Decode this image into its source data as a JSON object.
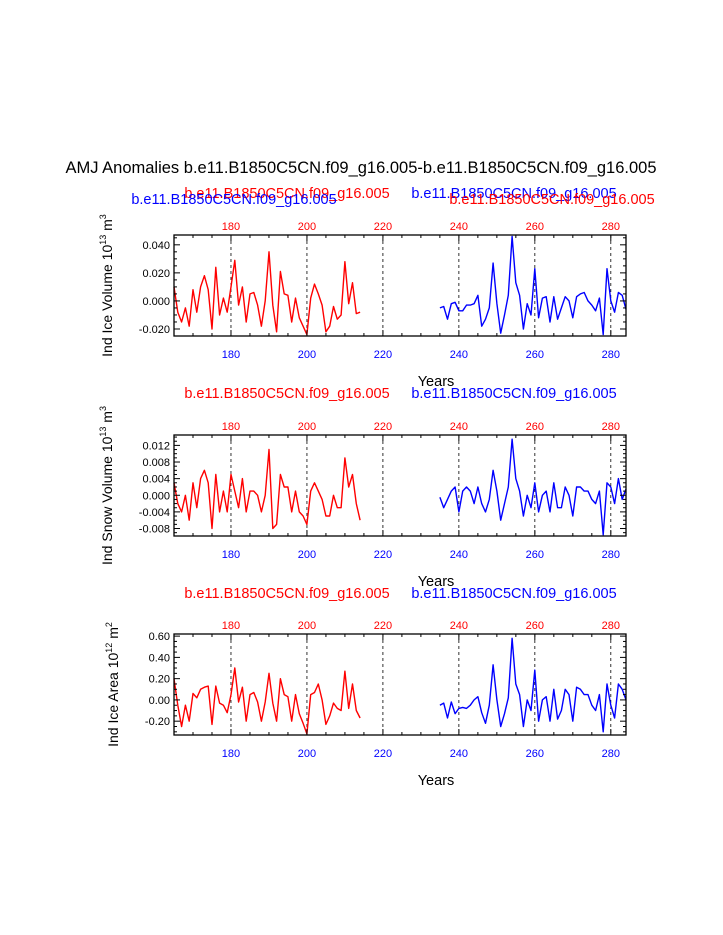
{
  "title": "AMJ Anomalies b.e11.B1850C5CN.f09_g16.005-b.e11.B1850C5CN.f09_g16.005",
  "colors": {
    "case1": "#ff0000",
    "case2": "#0000ff",
    "axis": "#000000",
    "refline": "#000000"
  },
  "chart_data": [
    {
      "type": "line",
      "xlabel": "Years",
      "ylabel": "Ind Ice Volume 10",
      "ylabel_exp": "13",
      "ylabel_unit": " m",
      "ylabel_unit_exp": "3",
      "xlim": [
        165,
        284
      ],
      "ylim": [
        -0.025,
        0.047
      ],
      "yticks": [
        -0.02,
        0.0,
        0.02,
        0.04
      ],
      "ytick_labels": [
        "-0.020",
        "0.000",
        "0.020",
        "0.040"
      ],
      "xticks": [
        180,
        200,
        220,
        240,
        260,
        280
      ],
      "xtick_labels": [
        "180",
        "200",
        "220",
        "240",
        "260",
        "280"
      ],
      "top_labels": [
        {
          "text": "b.e11.B1850C5CN.f09_g16.005",
          "color": "#ff0000"
        },
        {
          "text": "b.e11.B1850C5CN.f09_g16.005",
          "color": "#0000ff"
        },
        {
          "text": "b.e11.B1850C5CN.f09_g16.005",
          "color": "#0000ff"
        },
        {
          "text": "b.e11.B1850C5CN.f09_g16.005",
          "color": "#ff0000"
        }
      ],
      "reference_lines_x": [
        180,
        200,
        220,
        240,
        260,
        280
      ],
      "series": [
        {
          "color": "#ff0000",
          "x": [
            165,
            166,
            167,
            168,
            169,
            170,
            171,
            172,
            173,
            174,
            175,
            176,
            177,
            178,
            179,
            180,
            181,
            182,
            183,
            184,
            185,
            186,
            187,
            188,
            189,
            190,
            191,
            192,
            193,
            194,
            195,
            196,
            197,
            198,
            199,
            200,
            201,
            202,
            203,
            204,
            205,
            206,
            207,
            208,
            209,
            210,
            211,
            212,
            213,
            214
          ],
          "values": [
            0.01,
            -0.008,
            -0.015,
            -0.005,
            -0.018,
            0.008,
            -0.008,
            0.01,
            0.018,
            0.008,
            -0.02,
            0.024,
            -0.01,
            0.002,
            -0.008,
            0.01,
            0.029,
            -0.003,
            0.01,
            -0.015,
            0.005,
            0.006,
            -0.003,
            -0.018,
            0.0,
            0.035,
            -0.003,
            -0.022,
            0.021,
            0.005,
            0.004,
            -0.015,
            0.002,
            -0.012,
            -0.018,
            -0.024,
            0.002,
            0.012,
            0.005,
            -0.003,
            -0.022,
            -0.018,
            -0.004,
            -0.013,
            -0.01,
            0.028,
            -0.002,
            0.013,
            -0.009,
            -0.008
          ]
        },
        {
          "color": "#0000ff",
          "x": [
            235,
            236,
            237,
            238,
            239,
            240,
            241,
            242,
            243,
            244,
            245,
            246,
            247,
            248,
            249,
            250,
            251,
            252,
            253,
            254,
            255,
            256,
            257,
            258,
            259,
            260,
            261,
            262,
            263,
            264,
            265,
            266,
            267,
            268,
            269,
            270,
            271,
            272,
            273,
            274,
            275,
            276,
            277,
            278,
            279,
            280,
            281,
            282,
            283,
            284
          ],
          "values": [
            -0.005,
            -0.004,
            -0.013,
            -0.002,
            -0.001,
            -0.007,
            -0.007,
            -0.003,
            -0.003,
            -0.002,
            0.004,
            -0.018,
            -0.013,
            -0.005,
            0.027,
            -0.002,
            -0.023,
            -0.01,
            0.004,
            0.046,
            0.013,
            0.004,
            -0.02,
            -0.002,
            -0.01,
            0.023,
            -0.012,
            0.002,
            0.003,
            -0.015,
            0.003,
            -0.013,
            -0.005,
            0.003,
            0.0,
            -0.012,
            0.003,
            0.005,
            0.006,
            0.0,
            -0.003,
            -0.007,
            0.002,
            -0.024,
            0.023,
            0.0,
            -0.008,
            0.006,
            0.004,
            -0.006
          ]
        }
      ]
    },
    {
      "type": "line",
      "xlabel": "Years",
      "ylabel": "Ind Snow Volume 10",
      "ylabel_exp": "13",
      "ylabel_unit": " m",
      "ylabel_unit_exp": "3",
      "xlim": [
        165,
        284
      ],
      "ylim": [
        -0.0098,
        0.0145
      ],
      "yticks": [
        -0.008,
        -0.004,
        0.0,
        0.004,
        0.008,
        0.012
      ],
      "ytick_labels": [
        "-0.008",
        "-0.004",
        "0.000",
        "0.004",
        "0.008",
        "0.012"
      ],
      "xticks": [
        180,
        200,
        220,
        240,
        260,
        280
      ],
      "xtick_labels": [
        "180",
        "200",
        "220",
        "240",
        "260",
        "280"
      ],
      "top_labels": [
        {
          "text": "b.e11.B1850C5CN.f09_g16.005",
          "color": "#ff0000"
        },
        {
          "text": "b.e11.B1850C5CN.f09_g16.005",
          "color": "#0000ff"
        }
      ],
      "reference_lines_x": [
        180,
        200,
        220,
        240,
        260,
        280
      ],
      "series": [
        {
          "color": "#ff0000",
          "x": [
            165,
            166,
            167,
            168,
            169,
            170,
            171,
            172,
            173,
            174,
            175,
            176,
            177,
            178,
            179,
            180,
            181,
            182,
            183,
            184,
            185,
            186,
            187,
            188,
            189,
            190,
            191,
            192,
            193,
            194,
            195,
            196,
            197,
            198,
            199,
            200,
            201,
            202,
            203,
            204,
            205,
            206,
            207,
            208,
            209,
            210,
            211,
            212,
            213,
            214
          ],
          "values": [
            0.003,
            -0.002,
            -0.004,
            0.0,
            -0.006,
            0.003,
            -0.003,
            0.004,
            0.006,
            0.003,
            -0.008,
            0.005,
            -0.004,
            0.001,
            -0.004,
            0.005,
            0.001,
            -0.003,
            0.004,
            -0.004,
            0.001,
            0.001,
            0.0,
            -0.004,
            0.0,
            0.011,
            -0.008,
            -0.007,
            0.005,
            0.002,
            0.002,
            -0.004,
            0.001,
            -0.004,
            -0.005,
            -0.007,
            0.001,
            0.003,
            0.001,
            -0.001,
            -0.005,
            -0.005,
            0.0,
            -0.003,
            -0.003,
            0.009,
            0.002,
            0.005,
            -0.002,
            -0.006
          ]
        },
        {
          "color": "#0000ff",
          "x": [
            235,
            236,
            237,
            238,
            239,
            240,
            241,
            242,
            243,
            244,
            245,
            246,
            247,
            248,
            249,
            250,
            251,
            252,
            253,
            254,
            255,
            256,
            257,
            258,
            259,
            260,
            261,
            262,
            263,
            264,
            265,
            266,
            267,
            268,
            269,
            270,
            271,
            272,
            273,
            274,
            275,
            276,
            277,
            278,
            279,
            280,
            281,
            282,
            283,
            284
          ],
          "values": [
            -0.0005,
            -0.003,
            -0.001,
            0.001,
            0.002,
            -0.004,
            0.001,
            0.002,
            0.001,
            -0.002,
            0.002,
            -0.002,
            -0.004,
            -0.001,
            0.006,
            0.001,
            -0.006,
            -0.002,
            0.002,
            0.0135,
            0.004,
            0.001,
            -0.005,
            0.0,
            -0.003,
            0.003,
            -0.004,
            0.0,
            0.001,
            -0.004,
            0.003,
            -0.003,
            -0.003,
            0.002,
            0.0,
            -0.005,
            0.002,
            0.002,
            0.001,
            0.001,
            -0.001,
            -0.002,
            0.001,
            -0.0095,
            0.003,
            0.002,
            -0.002,
            0.004,
            -0.001,
            0.0015
          ]
        }
      ]
    },
    {
      "type": "line",
      "xlabel": "Years",
      "ylabel": "Ind Ice Area 10",
      "ylabel_exp": "12",
      "ylabel_unit": " m",
      "ylabel_unit_exp": "2",
      "xlim": [
        165,
        284
      ],
      "ylim": [
        -0.33,
        0.62
      ],
      "yticks": [
        -0.2,
        0.0,
        0.2,
        0.4,
        0.6
      ],
      "ytick_labels": [
        "-0.20",
        "0.00",
        "0.20",
        "0.40",
        "0.60"
      ],
      "xticks": [
        180,
        200,
        220,
        240,
        260,
        280
      ],
      "xtick_labels": [
        "180",
        "200",
        "220",
        "240",
        "260",
        "280"
      ],
      "top_labels": [
        {
          "text": "b.e11.B1850C5CN.f09_g16.005",
          "color": "#ff0000"
        },
        {
          "text": "b.e11.B1850C5CN.f09_g16.005",
          "color": "#0000ff"
        }
      ],
      "reference_lines_x": [
        180,
        200,
        220,
        240,
        260,
        280
      ],
      "series": [
        {
          "color": "#ff0000",
          "x": [
            165,
            166,
            167,
            168,
            169,
            170,
            171,
            172,
            173,
            174,
            175,
            176,
            177,
            178,
            179,
            180,
            181,
            182,
            183,
            184,
            185,
            186,
            187,
            188,
            189,
            190,
            191,
            192,
            193,
            194,
            195,
            196,
            197,
            198,
            199,
            200,
            201,
            202,
            203,
            204,
            205,
            206,
            207,
            208,
            209,
            210,
            211,
            212,
            213,
            214
          ],
          "values": [
            0.2,
            -0.05,
            -0.25,
            -0.05,
            -0.2,
            0.06,
            0.02,
            0.1,
            0.12,
            0.13,
            -0.23,
            0.13,
            -0.03,
            -0.05,
            -0.12,
            0.05,
            0.3,
            -0.02,
            0.12,
            -0.2,
            0.05,
            0.07,
            -0.02,
            -0.2,
            -0.02,
            0.25,
            -0.03,
            -0.2,
            0.2,
            0.05,
            0.03,
            -0.2,
            0.05,
            -0.13,
            -0.22,
            -0.32,
            0.05,
            0.07,
            0.15,
            0.0,
            -0.23,
            -0.15,
            -0.03,
            -0.08,
            -0.1,
            0.27,
            -0.08,
            0.15,
            -0.1,
            -0.17
          ]
        },
        {
          "color": "#0000ff",
          "x": [
            235,
            236,
            237,
            238,
            239,
            240,
            241,
            242,
            243,
            244,
            245,
            246,
            247,
            248,
            249,
            250,
            251,
            252,
            253,
            254,
            255,
            256,
            257,
            258,
            259,
            260,
            261,
            262,
            263,
            264,
            265,
            266,
            267,
            268,
            269,
            270,
            271,
            272,
            273,
            274,
            275,
            276,
            277,
            278,
            279,
            280,
            281,
            282,
            283,
            284
          ],
          "values": [
            -0.05,
            -0.03,
            -0.17,
            -0.02,
            -0.13,
            -0.08,
            -0.07,
            -0.08,
            -0.05,
            0.0,
            0.03,
            -0.12,
            -0.22,
            -0.05,
            0.33,
            0.0,
            -0.25,
            -0.13,
            0.02,
            0.58,
            0.15,
            0.05,
            -0.25,
            0.0,
            -0.1,
            0.28,
            -0.2,
            0.0,
            0.03,
            -0.2,
            0.1,
            -0.18,
            -0.1,
            0.1,
            0.05,
            -0.2,
            0.12,
            0.1,
            0.05,
            0.05,
            -0.05,
            -0.1,
            0.05,
            -0.3,
            0.15,
            -0.05,
            -0.17,
            0.15,
            0.1,
            0.0
          ]
        }
      ]
    }
  ]
}
